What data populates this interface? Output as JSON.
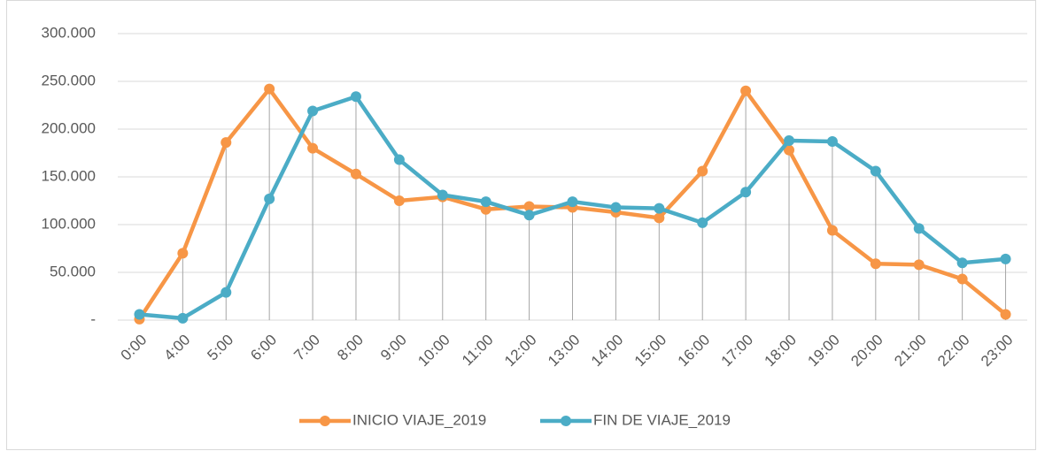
{
  "chart_data": {
    "type": "line",
    "categories": [
      "0:00",
      "4:00",
      "5:00",
      "6:00",
      "7:00",
      "8:00",
      "9:00",
      "10:00",
      "11:00",
      "12:00",
      "13:00",
      "14:00",
      "15:00",
      "16:00",
      "17:00",
      "18:00",
      "19:00",
      "20:00",
      "21:00",
      "22:00",
      "23:00"
    ],
    "series": [
      {
        "name": "INICIO VIAJE_2019",
        "color": "#f79646",
        "values": [
          1000,
          70000,
          186000,
          242000,
          180000,
          153000,
          125000,
          129000,
          116000,
          119000,
          118000,
          113000,
          107000,
          156000,
          240000,
          178000,
          94000,
          59000,
          58000,
          43000,
          6000
        ]
      },
      {
        "name": "FIN DE VIAJE_2019",
        "color": "#4bacc6",
        "values": [
          6000,
          2000,
          29000,
          127000,
          219000,
          234000,
          168000,
          131000,
          124000,
          110000,
          124000,
          118000,
          117000,
          102000,
          134000,
          188000,
          187000,
          156000,
          96000,
          60000,
          64000
        ]
      }
    ],
    "ylim": [
      0,
      300000
    ],
    "yticks": [
      {
        "value": 0,
        "label": "-"
      },
      {
        "value": 50000,
        "label": "50.000"
      },
      {
        "value": 100000,
        "label": "100.000"
      },
      {
        "value": 150000,
        "label": "150.000"
      },
      {
        "value": 200000,
        "label": "200.000"
      },
      {
        "value": 250000,
        "label": "250.000"
      },
      {
        "value": 300000,
        "label": "300.000"
      }
    ],
    "grid": true,
    "legend": "bottom"
  }
}
